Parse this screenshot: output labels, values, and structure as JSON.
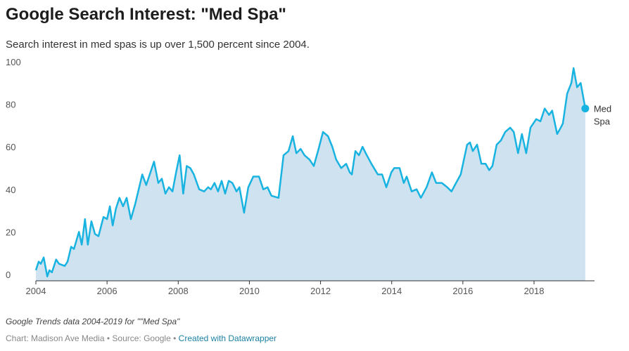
{
  "chart_data": {
    "type": "area-line",
    "title": "Google Search Interest: \"Med Spa\"",
    "subtitle": "Search interest in med spas is up over 1,500 percent since 2004.",
    "note": "Google Trends data 2004-2019 for \"\"Med Spa\"",
    "footer": {
      "credit": "Chart: Madison Ave Media • Source: Google •",
      "link": "Created with Datawrapper"
    },
    "xlim": [
      2004,
      2019.7
    ],
    "xticks": [
      2004,
      2006,
      2008,
      2010,
      2012,
      2014,
      2016,
      2018
    ],
    "ylim": [
      0,
      100
    ],
    "yticks": [
      0,
      20,
      40,
      60,
      80,
      100
    ],
    "grid": false,
    "series": [
      {
        "name": "Med Spa",
        "color": "#18b3e0",
        "fill": "#cfe2f0",
        "x": [
          2004.0,
          2004.08,
          2004.14,
          2004.22,
          2004.32,
          2004.38,
          2004.45,
          2004.57,
          2004.65,
          2004.81,
          2004.89,
          2004.99,
          2005.07,
          2005.21,
          2005.29,
          2005.38,
          2005.46,
          2005.56,
          2005.66,
          2005.76,
          2005.9,
          2006.0,
          2006.08,
          2006.16,
          2006.25,
          2006.35,
          2006.45,
          2006.55,
          2006.67,
          2006.79,
          2006.99,
          2007.1,
          2007.32,
          2007.44,
          2007.54,
          2007.64,
          2007.74,
          2007.84,
          2007.94,
          2008.04,
          2008.14,
          2008.24,
          2008.34,
          2008.44,
          2008.59,
          2008.73,
          2008.84,
          2008.92,
          2009.02,
          2009.12,
          2009.22,
          2009.32,
          2009.42,
          2009.52,
          2009.64,
          2009.72,
          2009.85,
          2009.97,
          2010.11,
          2010.27,
          2010.39,
          2010.51,
          2010.62,
          2010.82,
          2010.96,
          2011.1,
          2011.22,
          2011.32,
          2011.44,
          2011.55,
          2011.69,
          2011.81,
          2011.93,
          2012.07,
          2012.21,
          2012.33,
          2012.44,
          2012.58,
          2012.72,
          2012.82,
          2012.88,
          2012.98,
          2013.08,
          2013.18,
          2013.27,
          2013.43,
          2013.61,
          2013.73,
          2013.85,
          2013.99,
          2014.07,
          2014.22,
          2014.34,
          2014.42,
          2014.56,
          2014.7,
          2014.82,
          2014.98,
          2015.13,
          2015.25,
          2015.41,
          2015.56,
          2015.68,
          2015.84,
          2015.94,
          2016.12,
          2016.2,
          2016.28,
          2016.4,
          2016.52,
          2016.64,
          2016.74,
          2016.83,
          2016.95,
          2017.07,
          2017.19,
          2017.33,
          2017.43,
          2017.55,
          2017.66,
          2017.78,
          2017.9,
          2018.06,
          2018.18,
          2018.3,
          2018.42,
          2018.51,
          2018.65,
          2018.75,
          2018.81,
          2018.93,
          2019.05,
          2019.11,
          2019.21,
          2019.31,
          2019.44
        ],
        "values": [
          5,
          9,
          8,
          11,
          2,
          5,
          4,
          10,
          8,
          7,
          9,
          16,
          15,
          23,
          17,
          29,
          17,
          28,
          22,
          21,
          30,
          29,
          35,
          26,
          34,
          39,
          35,
          39,
          29,
          36,
          50,
          45,
          56,
          46,
          48,
          41,
          44,
          42,
          51,
          59,
          41,
          54,
          53,
          50,
          43,
          42,
          44,
          43,
          46,
          42,
          47,
          41,
          47,
          46,
          42,
          44,
          32,
          44,
          49,
          49,
          43,
          44,
          40,
          39,
          59,
          61,
          68,
          60,
          62,
          59,
          57,
          54,
          61,
          70,
          68,
          63,
          57,
          53,
          55,
          51,
          50,
          61,
          59,
          63,
          60,
          55,
          50,
          50,
          44,
          51,
          53,
          53,
          46,
          49,
          42,
          43,
          39,
          44,
          51,
          46,
          46,
          44,
          42,
          47,
          50,
          64,
          65,
          61,
          64,
          55,
          55,
          52,
          54,
          64,
          66,
          70,
          72,
          70,
          60,
          69,
          60,
          72,
          76,
          75,
          81,
          78,
          80,
          69,
          72,
          74,
          88,
          93,
          100,
          91,
          93,
          81
        ]
      }
    ]
  }
}
